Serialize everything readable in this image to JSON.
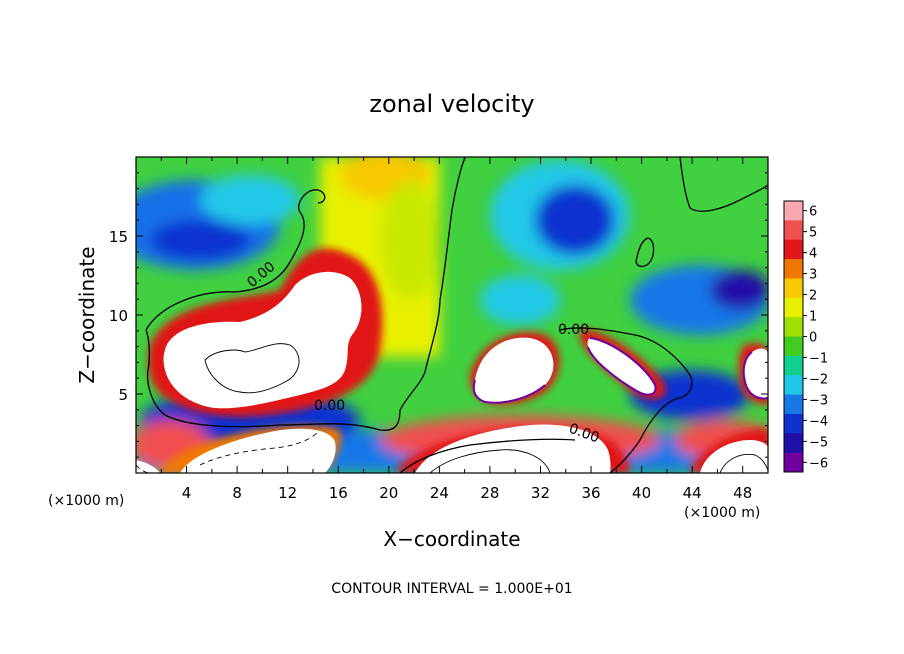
{
  "chart_data": {
    "type": "heatmap",
    "title": "zonal velocity",
    "xlabel": "X−coordinate",
    "ylabel": "Z−coordinate",
    "x_unit_label": "(×1000 m)",
    "y_unit_label": "(×1000 m)",
    "xlim": [
      0,
      50
    ],
    "ylim": [
      0,
      20
    ],
    "x_ticks": [
      4,
      8,
      12,
      16,
      20,
      24,
      28,
      32,
      36,
      40,
      44,
      48
    ],
    "y_ticks": [
      5,
      10,
      15
    ],
    "colorbar": {
      "levels": [
        6,
        5,
        4,
        3,
        2,
        1,
        0,
        -1,
        -2,
        -3,
        -4,
        -5,
        -6
      ],
      "labels": [
        "6",
        "5",
        "4",
        "3",
        "2",
        "1",
        "0",
        "−1",
        "−2",
        "−3",
        "−4",
        "−5",
        "−6"
      ],
      "colors": [
        "#f7a8b0",
        "#f05050",
        "#e01818",
        "#f07800",
        "#f8c800",
        "#e8f000",
        "#a0e000",
        "#40cc20",
        "#10d090",
        "#20c8e8",
        "#1878e8",
        "#1030d0",
        "#2010a8",
        "#7000a0"
      ]
    },
    "contour_labels": [
      {
        "text": "0.00",
        "x": 10.5,
        "z": 12.5
      },
      {
        "text": "0.00",
        "x": 15.8,
        "z": 4.2
      },
      {
        "text": "0.00",
        "x": 35.5,
        "z": 9.3
      },
      {
        "text": "0.00",
        "x": 35.6,
        "z": 2.6
      }
    ],
    "features": [
      {
        "kind": "saturated_positive",
        "x": [
          4,
          18
        ],
        "z": [
          5,
          12
        ]
      },
      {
        "kind": "saturated_positive",
        "x": [
          27,
          35
        ],
        "z": [
          4.5,
          8.5
        ]
      },
      {
        "kind": "saturated_positive",
        "x": [
          35.5,
          41
        ],
        "z": [
          5,
          8.5
        ]
      },
      {
        "kind": "saturated_positive",
        "x": [
          48,
          50
        ],
        "z": [
          4.5,
          8
        ]
      },
      {
        "kind": "saturated_positive",
        "x": [
          22,
          37
        ],
        "z": [
          0,
          2
        ]
      },
      {
        "kind": "saturated_positive",
        "x": [
          44,
          50
        ],
        "z": [
          0,
          1.5
        ]
      },
      {
        "kind": "saturated_positive",
        "x": [
          5,
          16
        ],
        "z": [
          0,
          2.5
        ]
      },
      {
        "kind": "negative_core",
        "x": [
          0,
          10
        ],
        "z": [
          14,
          18
        ]
      },
      {
        "kind": "negative_core",
        "x": [
          30,
          39
        ],
        "z": [
          14,
          18
        ]
      },
      {
        "kind": "negative_core",
        "x": [
          43,
          50
        ],
        "z": [
          10,
          14
        ]
      }
    ],
    "footnote": "CONTOUR INTERVAL = 1.000E+01"
  }
}
